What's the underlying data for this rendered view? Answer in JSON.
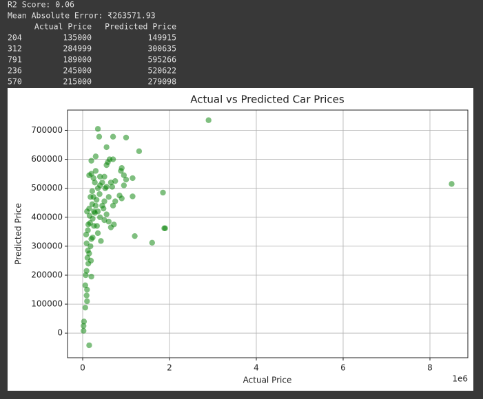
{
  "console": {
    "lines": [
      "R2 Score: 0.06",
      "Mean Absolute Error: ₹263571.93"
    ],
    "table": {
      "columns": [
        "Actual Price",
        "Predicted Price"
      ],
      "rows": [
        [
          "204",
          135000,
          149915
        ],
        [
          "312",
          284999,
          300635
        ],
        [
          "791",
          189000,
          595266
        ],
        [
          "236",
          245000,
          520622
        ],
        [
          "570",
          215000,
          279098
        ]
      ]
    }
  },
  "chart_data": {
    "type": "scatter",
    "title": "Actual vs Predicted Car Prices",
    "x_label": "Actual Price",
    "y_label": "Predicted Price",
    "x_offset_label": "1e6",
    "grid": true,
    "xlim": [
      -349000,
      8873000
    ],
    "ylim": [
      -85000,
      770000
    ],
    "xticks": [
      0,
      {
        "value": 2000000,
        "label": "2"
      },
      {
        "value": 4000000,
        "label": "4"
      },
      {
        "value": 6000000,
        "label": "6"
      },
      {
        "value": 8000000,
        "label": "8"
      }
    ],
    "yticks": [
      0,
      100000,
      200000,
      300000,
      400000,
      500000,
      600000,
      700000
    ],
    "series": [
      {
        "color": "#008000",
        "x": [
          2900000,
          8500000,
          1850000,
          1880000,
          1900000,
          1600000,
          1200000,
          1300000,
          1000000,
          700000,
          350000,
          380000,
          550000,
          150000,
          20000,
          30000,
          20000,
          60000,
          100000,
          90000,
          60000,
          100000,
          70000,
          200000,
          90000,
          130000,
          110000,
          150000,
          190000,
          120000,
          180000,
          90000,
          80000,
          200000,
          120000,
          230000,
          260000,
          130000,
          420000,
          100000,
          150000,
          160000,
          220000,
          250000,
          300000,
          280000,
          350000,
          320000,
          390000,
          400000,
          450000,
          500000,
          520000,
          550000,
          580000,
          620000,
          700000,
          650000,
          600000,
          700000,
          750000,
          720000,
          650000,
          600000,
          500000,
          850000,
          900000,
          950000,
          1000000,
          1150000,
          1150000,
          900000,
          880000,
          950000,
          750000,
          680000,
          550000,
          300000,
          250000,
          200000,
          150000,
          280000,
          350000,
          450000,
          400000,
          480000,
          330000,
          230000,
          180000,
          220000,
          300000,
          200000,
          400000,
          500000,
          550000,
          260000,
          350000,
          170000
        ],
        "values": [
          735000,
          515000,
          485000,
          362000,
          362000,
          312000,
          335000,
          628000,
          675000,
          678000,
          705000,
          678000,
          642000,
          -42000,
          8000,
          40000,
          25000,
          88000,
          110000,
          130000,
          165000,
          150000,
          200000,
          195000,
          215000,
          240000,
          260000,
          275000,
          250000,
          285000,
          300000,
          310000,
          340000,
          325000,
          355000,
          330000,
          370000,
          375000,
          318000,
          420000,
          430000,
          405000,
          445000,
          470000,
          440000,
          415000,
          420000,
          460000,
          480000,
          510000,
          520000,
          540000,
          500000,
          580000,
          590000,
          600000,
          600000,
          520000,
          470000,
          440000,
          455000,
          375000,
          365000,
          385000,
          390000,
          475000,
          465000,
          510000,
          530000,
          535000,
          472000,
          570000,
          560000,
          545000,
          525000,
          505000,
          505000,
          560000,
          535000,
          550000,
          545000,
          520000,
          500000,
          440000,
          400000,
          430000,
          370000,
          395000,
          470000,
          490000,
          610000,
          595000,
          540000,
          455000,
          410000,
          420000,
          345000,
          380000
        ]
      }
    ]
  }
}
